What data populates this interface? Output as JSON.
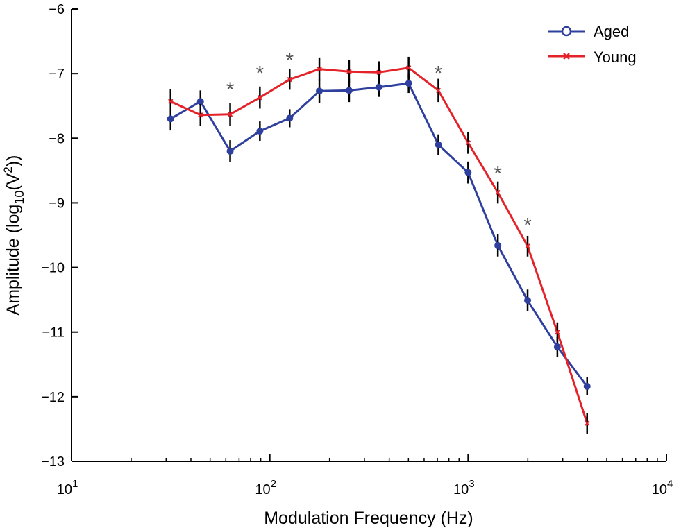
{
  "chart_data": {
    "type": "line",
    "title": "",
    "xlabel": "Modulation Frequency (Hz)",
    "ylabel_main": "Amplitude (log",
    "ylabel_sub": "10",
    "ylabel_paren": "(V",
    "ylabel_sup": "2",
    "ylabel_end": "))",
    "xscale": "log",
    "xlim_exp": [
      1,
      4
    ],
    "x_ticks": [
      {
        "exp": 1,
        "base": "10",
        "sup": "1"
      },
      {
        "exp": 2,
        "base": "10",
        "sup": "2"
      },
      {
        "exp": 3,
        "base": "10",
        "sup": "3"
      },
      {
        "exp": 4,
        "base": "10",
        "sup": "4"
      }
    ],
    "ylim": [
      -13,
      -6
    ],
    "y_ticks": [
      {
        "value": -6,
        "label": "−6"
      },
      {
        "value": -7,
        "label": "−7"
      },
      {
        "value": -8,
        "label": "−8"
      },
      {
        "value": -9,
        "label": "−9"
      },
      {
        "value": -10,
        "label": "−10"
      },
      {
        "value": -11,
        "label": "−11"
      },
      {
        "value": -12,
        "label": "−12"
      },
      {
        "value": -13,
        "label": "−13"
      }
    ],
    "legend_position": "top-right",
    "x": [
      31.6,
      44.7,
      63.1,
      89.1,
      125.9,
      177.8,
      251.2,
      354.8,
      501.2,
      707.9,
      1000,
      1412.5,
      1995.3,
      2818.4,
      3981.1
    ],
    "series": [
      {
        "name": "Aged",
        "color": "#2e3f9e",
        "marker": "circle",
        "values": [
          -7.7,
          -7.43,
          -8.2,
          -7.89,
          -7.69,
          -7.27,
          -7.26,
          -7.21,
          -7.15,
          -8.1,
          -8.53,
          -9.66,
          -10.51,
          -11.23,
          -11.84
        ],
        "errors": [
          0.18,
          0.17,
          0.17,
          0.15,
          0.14,
          0.18,
          0.18,
          0.15,
          0.15,
          0.16,
          0.17,
          0.17,
          0.17,
          0.15,
          0.14
        ]
      },
      {
        "name": "Young",
        "color": "#e3222a",
        "marker": "x",
        "values": [
          -7.43,
          -7.64,
          -7.63,
          -7.37,
          -7.09,
          -6.93,
          -6.97,
          -6.98,
          -6.91,
          -7.26,
          -8.07,
          -8.84,
          -9.67,
          -11.0,
          -12.41
        ],
        "errors": [
          0.19,
          0.17,
          0.18,
          0.17,
          0.16,
          0.18,
          0.18,
          0.17,
          0.17,
          0.18,
          0.17,
          0.17,
          0.16,
          0.15,
          0.16
        ]
      }
    ],
    "significance_marks": [
      {
        "x": 63.1,
        "y": -7.2,
        "label": "*"
      },
      {
        "x": 89.1,
        "y": -6.95,
        "label": "*"
      },
      {
        "x": 125.9,
        "y": -6.75,
        "label": "*"
      },
      {
        "x": 707.9,
        "y": -6.95,
        "label": "*"
      },
      {
        "x": 1412.5,
        "y": -8.5,
        "label": "*"
      },
      {
        "x": 1995.3,
        "y": -9.3,
        "label": "*"
      }
    ]
  }
}
